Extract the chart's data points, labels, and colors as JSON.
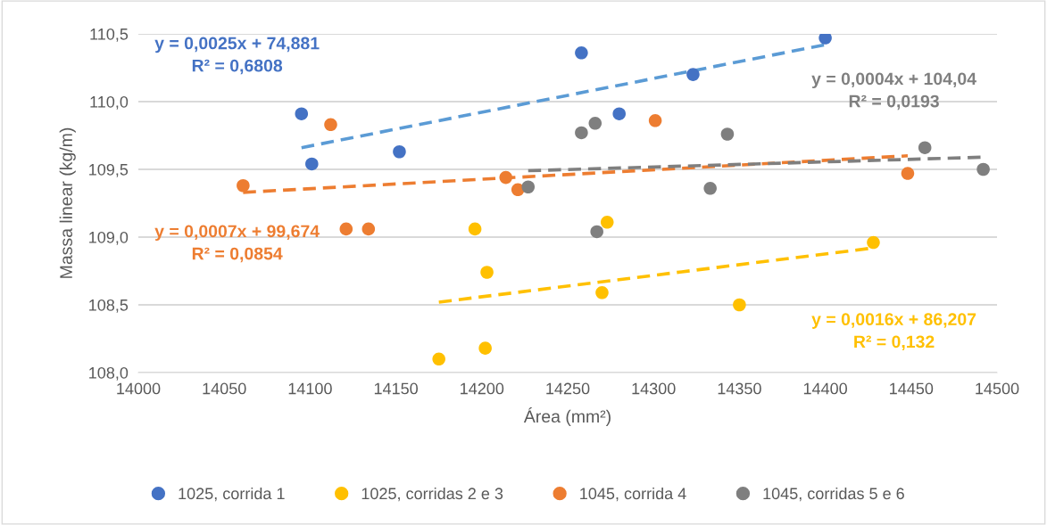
{
  "chart_data": {
    "type": "scatter",
    "xlabel": "Área (mm²)",
    "ylabel": "Massa linear (kg/m)",
    "xlim": [
      14000,
      14500
    ],
    "xticks": [
      14000,
      14050,
      14100,
      14150,
      14200,
      14250,
      14300,
      14350,
      14400,
      14450,
      14500
    ],
    "ylim": [
      108.0,
      110.5
    ],
    "yticks": [
      {
        "value": 108.0,
        "label": "108,0"
      },
      {
        "value": 108.5,
        "label": "108,5"
      },
      {
        "value": 109.0,
        "label": "109,0"
      },
      {
        "value": 109.5,
        "label": "109,5"
      },
      {
        "value": 110.0,
        "label": "110,0"
      },
      {
        "value": 110.5,
        "label": "110,5"
      }
    ],
    "grid": "y",
    "legend": "bottom",
    "marker": "circle",
    "series": [
      {
        "name": "1025, corrida 1",
        "color": "#4472c4",
        "x": [
          14095,
          14101,
          14152,
          14258,
          14280,
          14323,
          14400
        ],
        "values": [
          109.91,
          109.54,
          109.63,
          110.36,
          109.91,
          110.2,
          110.47
        ]
      },
      {
        "name": "1025, corridas 2 e 3",
        "color": "#ffc000",
        "x": [
          14175,
          14196,
          14202,
          14203,
          14270,
          14273,
          14350,
          14428
        ],
        "values": [
          108.1,
          109.06,
          108.18,
          108.74,
          108.59,
          109.11,
          108.5,
          108.96
        ]
      },
      {
        "name": "1045, corrida 4",
        "color": "#ed7d31",
        "x": [
          14061,
          14112,
          14121,
          14134,
          14214,
          14221,
          14301,
          14448
        ],
        "values": [
          109.38,
          109.83,
          109.06,
          109.06,
          109.44,
          109.35,
          109.86,
          109.47
        ]
      },
      {
        "name": "1045, corridas 5 e 6",
        "color": "#7f7f7f",
        "x": [
          14227,
          14258,
          14266,
          14267,
          14333,
          14343,
          14458,
          14492
        ],
        "values": [
          109.37,
          109.77,
          109.84,
          109.04,
          109.36,
          109.76,
          109.66,
          109.5
        ]
      },
      {
        "type": "line",
        "marker": "none",
        "line_style": "dashed",
        "color": "#5b9bd5",
        "x": [
          14095,
          14400
        ],
        "values": [
          109.66,
          110.42
        ]
      },
      {
        "type": "line",
        "marker": "none",
        "line_style": "dashed",
        "color": "#ffc000",
        "x": [
          14175,
          14428
        ],
        "values": [
          108.52,
          108.92
        ]
      },
      {
        "type": "line",
        "marker": "none",
        "line_style": "dashed",
        "color": "#ed7d31",
        "x": [
          14061,
          14448
        ],
        "values": [
          109.33,
          109.6
        ]
      },
      {
        "type": "line",
        "marker": "none",
        "line_style": "dashed",
        "color": "#7f7f7f",
        "x": [
          14227,
          14492
        ],
        "values": [
          109.49,
          109.59
        ]
      }
    ],
    "annotations": [
      "y = 0,0025x + 74,881\nR² = 0,6808",
      "y = 0,0016x + 86,207\nR² = 0,132",
      "y = 0,0007x + 99,674\nR² = 0,0854",
      "y = 0,0004x + 104,04\nR² = 0,0193"
    ]
  }
}
